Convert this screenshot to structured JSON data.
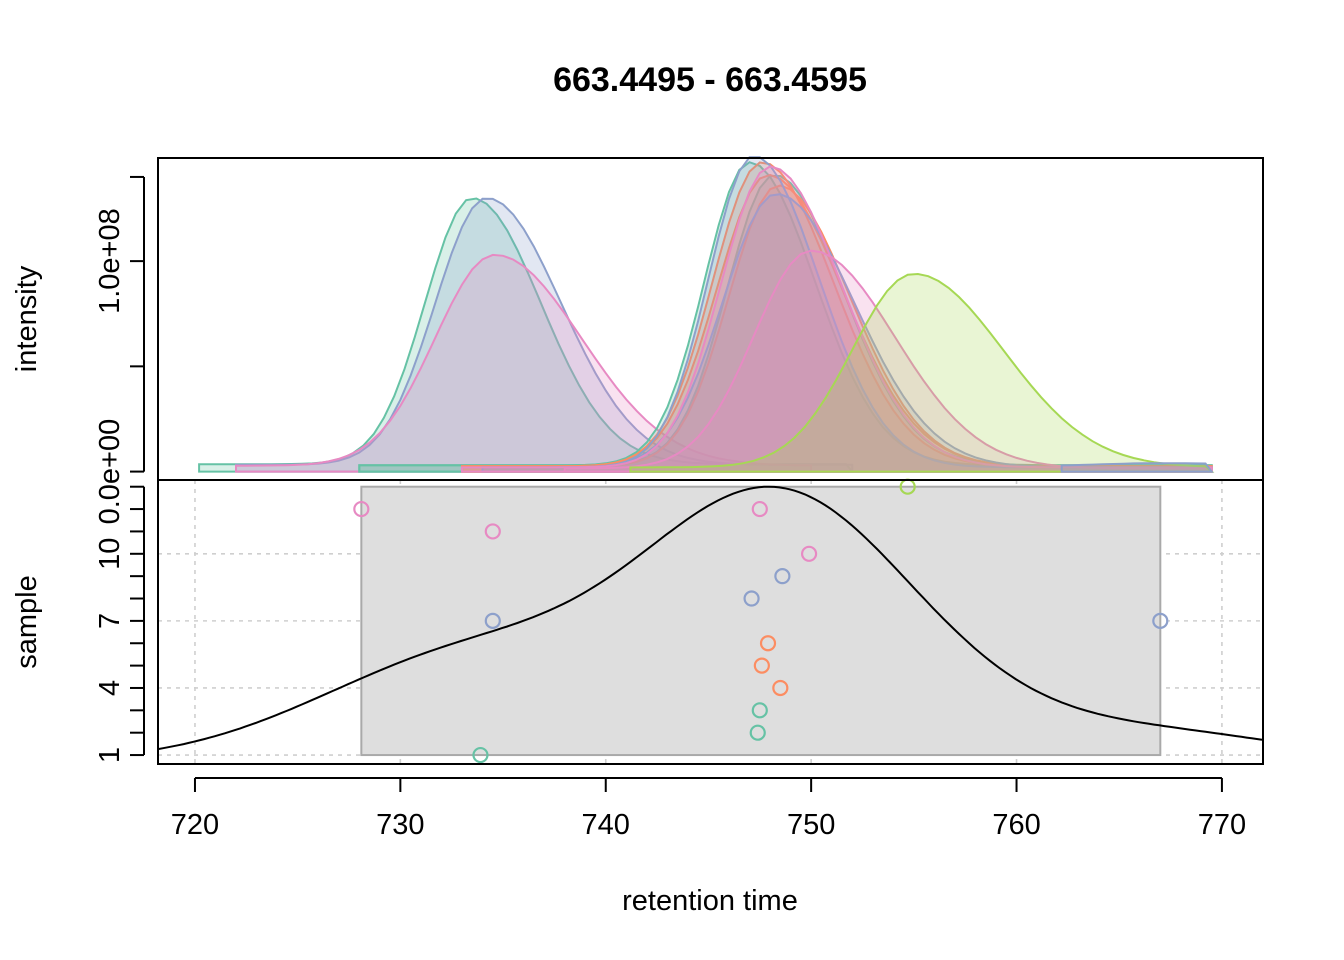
{
  "chart_data": {
    "type": "line",
    "title": "663.4495 - 663.4595",
    "xlabel": "retention time",
    "xlim": [
      718.2,
      772.0
    ],
    "x_ticks": [
      720,
      730,
      740,
      750,
      760,
      770
    ],
    "x_tick_labels": [
      "720",
      "730",
      "740",
      "750",
      "760",
      "770"
    ],
    "grid": true,
    "colors": {
      "green": "#66c2a5",
      "orange": "#fc8d62",
      "blue": "#8da0cb",
      "pink": "#e78ac3",
      "lime": "#a6d854"
    },
    "top_panel": {
      "ylabel": "intensity",
      "ylim": [
        -4000000,
        149000000
      ],
      "y_ticks": [
        0,
        50000000,
        100000000,
        140000000
      ],
      "y_tick_labels": [
        "0.0e+00",
        "",
        "1.0e+08",
        ""
      ],
      "peaks": [
        {
          "color": "green",
          "rt_start": 720.2,
          "rt_apex": 733.5,
          "rt_end": 752,
          "apex": 130000000,
          "baseline": 3500000,
          "width": 2.3
        },
        {
          "color": "blue",
          "rt_start": 722.0,
          "rt_apex": 734.2,
          "rt_end": 752,
          "apex": 130000000,
          "baseline": 3200000,
          "width": 2.5
        },
        {
          "color": "pink",
          "rt_start": 722.0,
          "rt_apex": 734.6,
          "rt_end": 750,
          "apex": 103000000,
          "baseline": 2800000,
          "width": 2.9
        },
        {
          "color": "green",
          "rt_start": 728.0,
          "rt_apex": 747.0,
          "rt_end": 769.5,
          "apex": 147000000,
          "baseline": 3000000,
          "width": 2.2
        },
        {
          "color": "green",
          "rt_start": 728.0,
          "rt_apex": 748.2,
          "rt_end": 769.5,
          "apex": 141000000,
          "baseline": 3000000,
          "width": 2.3
        },
        {
          "color": "orange",
          "rt_start": 733.0,
          "rt_apex": 747.6,
          "rt_end": 769.5,
          "apex": 147000000,
          "baseline": 2500000,
          "width": 2.4
        },
        {
          "color": "orange",
          "rt_start": 733.0,
          "rt_apex": 747.9,
          "rt_end": 769.5,
          "apex": 141000000,
          "baseline": 2500000,
          "width": 2.5
        },
        {
          "color": "orange",
          "rt_start": 733.0,
          "rt_apex": 748.4,
          "rt_end": 769.5,
          "apex": 136000000,
          "baseline": 2500000,
          "width": 2.4
        },
        {
          "color": "blue",
          "rt_start": 734.0,
          "rt_apex": 747.2,
          "rt_end": 769.5,
          "apex": 150000000,
          "baseline": 2000000,
          "width": 2.2
        },
        {
          "color": "blue",
          "rt_start": 734.0,
          "rt_apex": 748.3,
          "rt_end": 769.5,
          "apex": 132000000,
          "baseline": 2000000,
          "width": 2.6
        },
        {
          "color": "pink",
          "rt_start": 733.0,
          "rt_apex": 748.0,
          "rt_end": 769.5,
          "apex": 145000000,
          "baseline": 2000000,
          "width": 2.4
        },
        {
          "color": "pink",
          "rt_start": 738.0,
          "rt_apex": 750.0,
          "rt_end": 769.5,
          "apex": 105000000,
          "baseline": 1500000,
          "width": 2.8
        },
        {
          "color": "lime",
          "rt_start": 741.2,
          "rt_apex": 755.0,
          "rt_end": 769.5,
          "apex": 94000000,
          "baseline": 2000000,
          "width": 3.0
        },
        {
          "color": "blue",
          "rt_start": 762.2,
          "rt_apex": 767.0,
          "rt_end": 769.5,
          "apex": 4000000,
          "baseline": 2500000,
          "width": 3.0
        }
      ]
    },
    "bottom_panel": {
      "ylabel": "sample",
      "ylim": [
        0.6,
        13.3
      ],
      "y_ticks": [
        1,
        2,
        3,
        4,
        5,
        6,
        7,
        8,
        9,
        10,
        11,
        12,
        13
      ],
      "y_tick_labels": [
        "1",
        "",
        "",
        "4",
        "",
        "",
        "7",
        "",
        "",
        "10",
        "",
        "",
        ""
      ],
      "y_gridlines": [
        1,
        4,
        7,
        10
      ],
      "band": {
        "x0": 728.1,
        "x1": 767.0,
        "y0": 1,
        "y1": 13
      },
      "density_y_range": [
        0.7,
        13.0
      ],
      "points": [
        {
          "rt": 733.9,
          "sample": 1,
          "color": "green"
        },
        {
          "rt": 747.4,
          "sample": 2,
          "color": "green"
        },
        {
          "rt": 747.5,
          "sample": 3,
          "color": "green"
        },
        {
          "rt": 748.5,
          "sample": 4,
          "color": "orange"
        },
        {
          "rt": 747.6,
          "sample": 5,
          "color": "orange"
        },
        {
          "rt": 747.9,
          "sample": 6,
          "color": "orange"
        },
        {
          "rt": 734.5,
          "sample": 7,
          "color": "blue"
        },
        {
          "rt": 767.0,
          "sample": 7,
          "color": "blue"
        },
        {
          "rt": 747.1,
          "sample": 8,
          "color": "blue"
        },
        {
          "rt": 748.6,
          "sample": 9,
          "color": "blue"
        },
        {
          "rt": 749.9,
          "sample": 10,
          "color": "pink"
        },
        {
          "rt": 734.5,
          "sample": 11,
          "color": "pink"
        },
        {
          "rt": 728.1,
          "sample": 12,
          "color": "pink"
        },
        {
          "rt": 747.5,
          "sample": 12,
          "color": "pink"
        },
        {
          "rt": 754.7,
          "sample": 13,
          "color": "lime"
        }
      ]
    }
  }
}
